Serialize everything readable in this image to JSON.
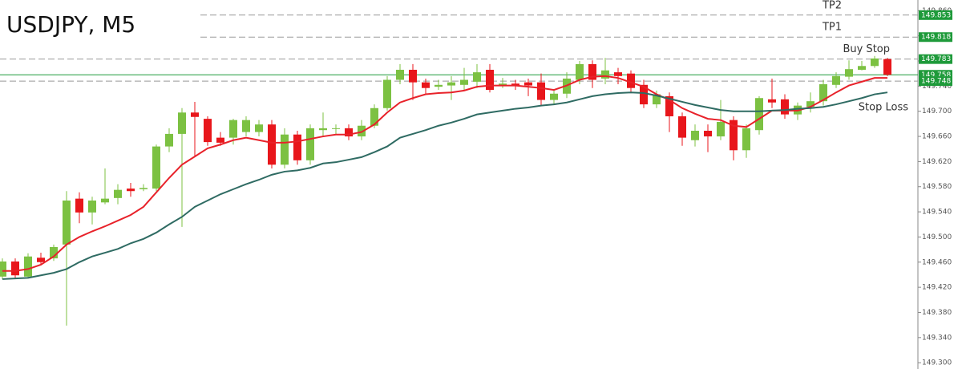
{
  "chart_data": {
    "type": "candlestick",
    "title": "USDJPY, M5",
    "up_color": "#7cc142",
    "down_color": "#e8161b",
    "open": [
      149.437,
      149.461,
      149.437,
      149.467,
      149.466,
      149.488,
      149.561,
      149.539,
      149.555,
      149.562,
      149.577,
      149.576,
      149.577,
      149.644,
      149.664,
      149.698,
      149.688,
      149.658,
      149.658,
      149.667,
      149.667,
      149.679,
      149.615,
      149.663,
      149.622,
      149.67,
      149.672,
      149.673,
      149.66,
      149.677,
      149.705,
      149.75,
      149.766,
      149.746,
      149.739,
      149.741,
      149.742,
      149.747,
      149.766,
      149.741,
      149.744,
      149.746,
      149.746,
      149.718,
      149.728,
      149.75,
      149.775,
      149.752,
      149.762,
      149.76,
      149.742,
      149.711,
      149.724,
      149.692,
      149.654,
      149.669,
      149.66,
      149.686,
      149.638,
      149.67,
      149.719,
      149.719,
      149.695,
      149.707,
      149.716,
      149.742,
      149.755,
      149.766,
      149.772,
      149.783
    ],
    "high": [
      149.466,
      149.466,
      149.474,
      149.475,
      149.488,
      149.573,
      149.571,
      149.564,
      149.609,
      149.584,
      149.586,
      149.584,
      149.647,
      149.673,
      149.705,
      149.715,
      149.692,
      149.667,
      149.688,
      149.692,
      149.686,
      149.686,
      149.673,
      149.669,
      149.679,
      149.698,
      149.679,
      149.679,
      149.686,
      149.711,
      149.756,
      149.775,
      149.775,
      149.752,
      149.75,
      149.756,
      149.769,
      149.775,
      149.775,
      149.753,
      149.75,
      149.752,
      149.76,
      149.734,
      149.762,
      149.78,
      149.781,
      149.785,
      149.769,
      149.765,
      149.75,
      149.733,
      149.73,
      149.698,
      149.679,
      149.679,
      149.718,
      149.692,
      149.679,
      149.724,
      149.752,
      149.727,
      149.714,
      149.73,
      149.75,
      149.762,
      149.781,
      149.78,
      149.788,
      149.785
    ],
    "low": [
      149.433,
      149.433,
      149.434,
      149.456,
      149.462,
      149.359,
      149.522,
      149.52,
      149.552,
      149.552,
      149.564,
      149.573,
      149.573,
      149.635,
      149.516,
      149.628,
      149.645,
      149.645,
      149.647,
      149.66,
      149.66,
      149.609,
      149.609,
      149.615,
      149.615,
      149.66,
      149.663,
      149.654,
      149.654,
      149.673,
      149.701,
      149.743,
      149.718,
      149.727,
      149.734,
      149.718,
      149.734,
      149.737,
      149.73,
      149.737,
      149.734,
      149.724,
      149.709,
      149.711,
      149.721,
      149.743,
      149.737,
      149.743,
      149.743,
      149.73,
      149.705,
      149.705,
      149.667,
      149.645,
      149.644,
      149.635,
      149.654,
      149.622,
      149.626,
      149.663,
      149.705,
      149.688,
      149.686,
      149.698,
      149.709,
      149.737,
      149.75,
      149.765,
      149.769,
      149.756
    ],
    "close": [
      149.461,
      149.439,
      149.469,
      149.46,
      149.484,
      149.558,
      149.539,
      149.558,
      149.561,
      149.575,
      149.573,
      149.578,
      149.644,
      149.664,
      149.698,
      149.691,
      149.651,
      149.65,
      149.686,
      149.686,
      149.679,
      149.615,
      149.663,
      149.622,
      149.673,
      149.673,
      149.673,
      149.66,
      149.677,
      149.705,
      149.75,
      149.766,
      149.746,
      149.737,
      149.742,
      149.746,
      149.75,
      149.762,
      149.734,
      149.744,
      149.741,
      149.741,
      149.718,
      149.728,
      149.752,
      149.775,
      149.75,
      149.765,
      149.756,
      149.737,
      149.711,
      149.727,
      149.692,
      149.658,
      149.669,
      149.66,
      149.683,
      149.638,
      149.673,
      149.721,
      149.714,
      149.695,
      149.709,
      149.716,
      149.743,
      149.756,
      149.767,
      149.772,
      149.784,
      149.758
    ],
    "series": [
      {
        "color": "#e8222a",
        "values": [
          149.446,
          149.446,
          149.449,
          149.456,
          149.469,
          149.488,
          149.5,
          149.509,
          149.517,
          149.526,
          149.535,
          149.548,
          149.571,
          149.594,
          149.615,
          149.628,
          149.641,
          149.647,
          149.654,
          149.658,
          149.654,
          149.65,
          149.65,
          149.652,
          149.656,
          149.66,
          149.663,
          149.663,
          149.667,
          149.679,
          149.698,
          149.714,
          149.721,
          149.727,
          149.729,
          149.73,
          149.733,
          149.739,
          149.741,
          149.741,
          149.741,
          149.739,
          149.737,
          149.734,
          149.741,
          149.75,
          149.755,
          149.756,
          149.753,
          149.746,
          149.739,
          149.727,
          149.718,
          149.705,
          149.696,
          149.688,
          149.686,
          149.677,
          149.675,
          149.688,
          149.701,
          149.701,
          149.701,
          149.707,
          149.718,
          149.73,
          149.741,
          149.747,
          149.753,
          149.753
        ]
      },
      {
        "color": "#2f6b63",
        "values": [
          149.433,
          149.434,
          149.435,
          149.439,
          149.443,
          149.449,
          149.46,
          149.469,
          149.475,
          149.481,
          149.49,
          149.497,
          149.507,
          149.52,
          149.532,
          149.548,
          149.558,
          149.568,
          149.576,
          149.584,
          149.591,
          149.599,
          149.604,
          149.606,
          149.61,
          149.617,
          149.619,
          149.623,
          149.627,
          149.635,
          149.644,
          149.658,
          149.664,
          149.67,
          149.677,
          149.682,
          149.688,
          149.695,
          149.698,
          149.701,
          149.704,
          149.706,
          149.709,
          149.711,
          149.714,
          149.719,
          149.724,
          149.727,
          149.729,
          149.73,
          149.729,
          149.725,
          149.72,
          149.715,
          149.71,
          149.706,
          149.702,
          149.7,
          149.7,
          149.7,
          149.701,
          149.702,
          149.704,
          149.705,
          149.707,
          149.711,
          149.716,
          149.721,
          149.727,
          149.73
        ]
      }
    ],
    "levels": [
      {
        "name": "TP2",
        "value": 149.853,
        "style": "dashed"
      },
      {
        "name": "TP1",
        "value": 149.818,
        "style": "dashed"
      },
      {
        "name": "Buy Stop",
        "value": 149.783,
        "style": "dashed"
      },
      {
        "value": 149.758,
        "style": "solid"
      },
      {
        "name": "Stop Loss",
        "value": 149.748,
        "style": "dashed"
      }
    ],
    "level_tag_color": "#1e9a3a",
    "ylim": [
      149.29,
      149.877
    ],
    "yticks": [
      {
        "value": 149.3,
        "label": "149.300"
      },
      {
        "value": 149.34,
        "label": "149.340"
      },
      {
        "value": 149.38,
        "label": "149.380"
      },
      {
        "value": 149.42,
        "label": "149.420"
      },
      {
        "value": 149.46,
        "label": "149.460"
      },
      {
        "value": 149.5,
        "label": "149.500"
      },
      {
        "value": 149.54,
        "label": "149.540"
      },
      {
        "value": 149.58,
        "label": "149.580"
      },
      {
        "value": 149.62,
        "label": "149.620"
      },
      {
        "value": 149.66,
        "label": "149.660"
      },
      {
        "value": 149.7,
        "label": "149.700"
      },
      {
        "value": 149.74,
        "label": "149.740"
      },
      {
        "value": 149.78,
        "label": "149.780"
      },
      {
        "value": 149.82,
        "label": "149.820"
      },
      {
        "value": 149.86,
        "label": "149.860"
      }
    ]
  }
}
